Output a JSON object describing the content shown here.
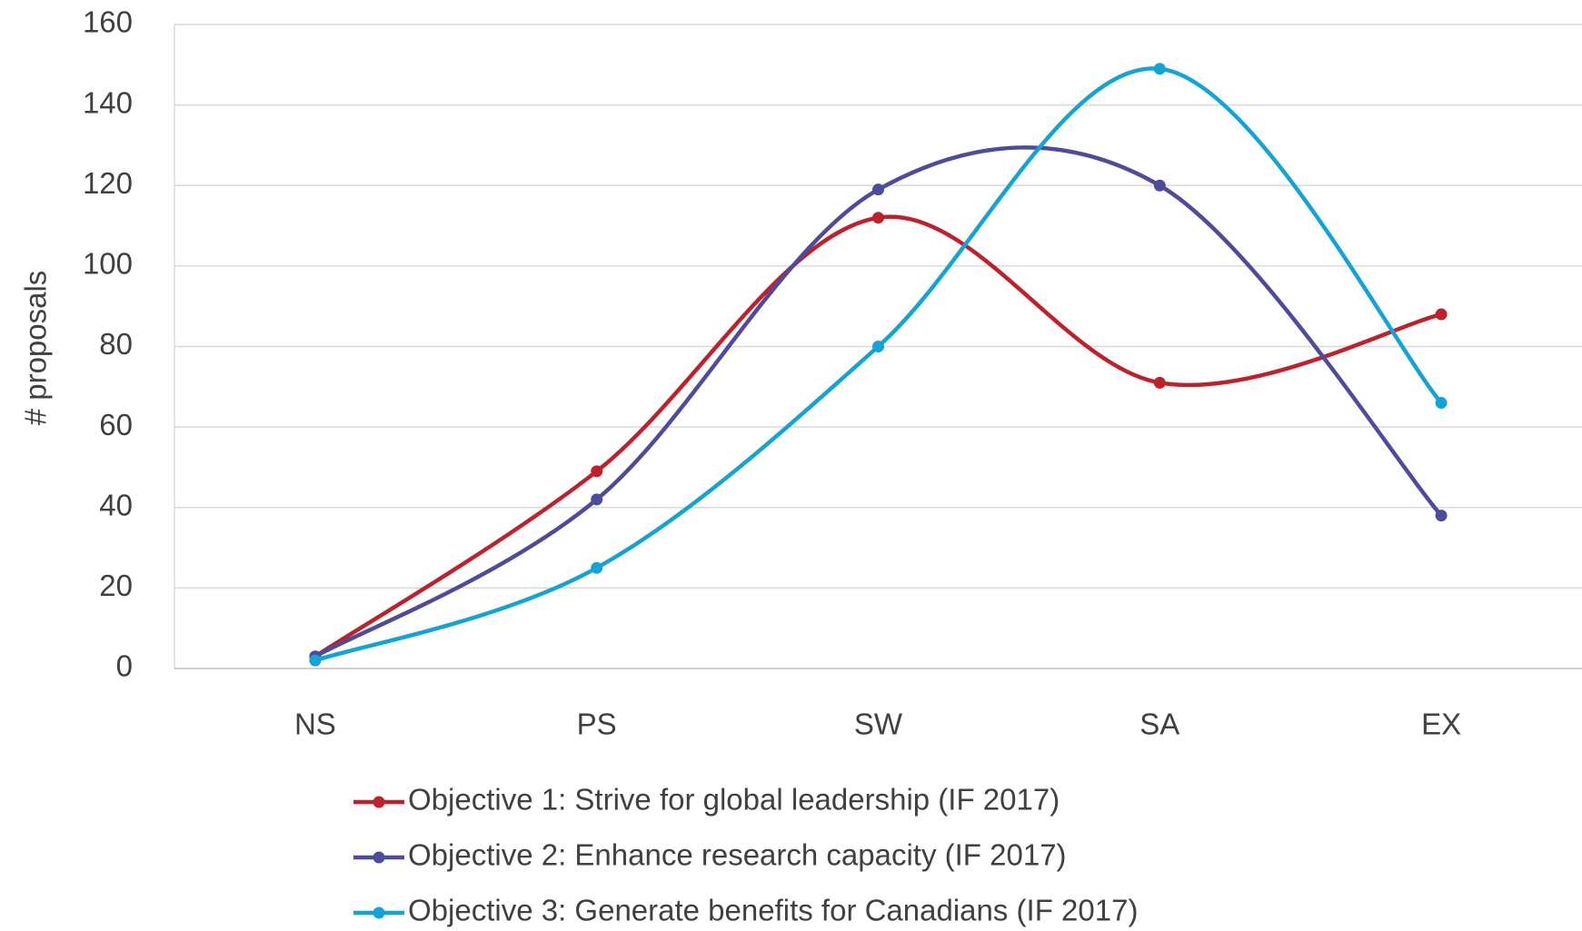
{
  "chart_data": {
    "type": "line",
    "smooth": true,
    "y_label": "# proposals",
    "categories": [
      "NS",
      "PS",
      "SW",
      "SA",
      "EX"
    ],
    "series": [
      {
        "name": "Objective 1: Strive for global leadership (IF 2017)",
        "color": "#c0202a",
        "values": [
          3,
          49,
          112,
          71,
          88
        ]
      },
      {
        "name": "Objective 2: Enhance research capacity (IF 2017)",
        "color": "#4e4a9e",
        "values": [
          3,
          42,
          119,
          120,
          38
        ]
      },
      {
        "name": "Objective 3: Generate benefits for Canadians (IF 2017)",
        "color": "#12a3d8",
        "values": [
          2,
          25,
          80,
          149,
          66
        ]
      }
    ],
    "ylim": [
      0,
      160
    ],
    "yticks": [
      0,
      20,
      40,
      60,
      80,
      100,
      120,
      140,
      160
    ],
    "grid": true,
    "legend": "bottom"
  }
}
